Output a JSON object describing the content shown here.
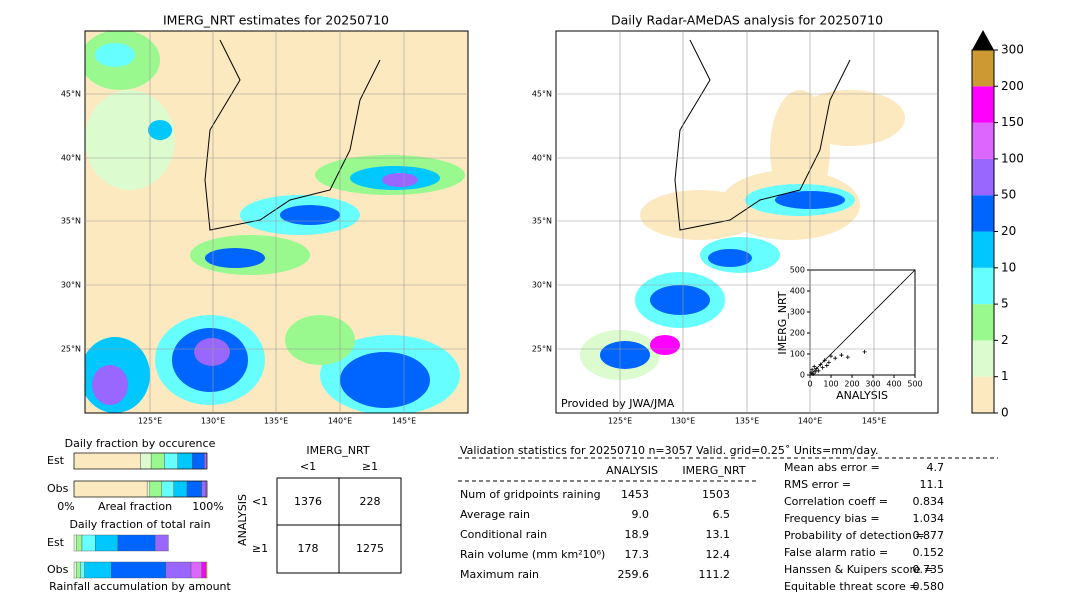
{
  "left_map": {
    "title": "IMERG_NRT estimates for 20250710"
  },
  "right_map": {
    "title": "Daily Radar-AMeDAS analysis for 20250710",
    "credit": "Provided by JWA/JMA"
  },
  "lat_labels": [
    "45°N",
    "40°N",
    "35°N",
    "30°N",
    "25°N"
  ],
  "lon_labels": [
    "125°E",
    "130°E",
    "135°E",
    "140°E",
    "145°E"
  ],
  "colorbar": {
    "ticks": [
      0,
      1,
      2,
      5,
      10,
      20,
      50,
      100,
      150,
      200,
      300
    ],
    "colors": [
      "#fde9c0",
      "#dcfcd0",
      "#99f98f",
      "#66fefe",
      "#00c8fe",
      "#0064fe",
      "#9966fe",
      "#dd66fe",
      "#ff00ff",
      "#cc9933"
    ]
  },
  "chart_data": {
    "type": "scatter",
    "xlabel": "ANALYSIS",
    "ylabel": "IMERG_NRT",
    "color": "#000000",
    "xlim": [
      0,
      500
    ],
    "ylim": [
      0,
      500
    ],
    "xticks": [
      0,
      100,
      200,
      300,
      400,
      500
    ],
    "yticks": [
      0,
      100,
      200,
      300,
      400,
      500
    ],
    "x": [
      5,
      10,
      15,
      20,
      25,
      30,
      40,
      50,
      60,
      70,
      80,
      90,
      100,
      120,
      150,
      180,
      260
    ],
    "y": [
      10,
      25,
      5,
      40,
      15,
      30,
      20,
      50,
      35,
      70,
      45,
      60,
      90,
      80,
      95,
      85,
      110
    ]
  },
  "occurrence": {
    "title": "Daily fraction by occurence",
    "rows": [
      "Est",
      "Obs"
    ],
    "fractions": [
      [
        50,
        8,
        10,
        10,
        11,
        9,
        2,
        0,
        0,
        0
      ],
      [
        55,
        2,
        9,
        9,
        10,
        11,
        3,
        1,
        0,
        0
      ]
    ],
    "axis_left": "0%",
    "axis_label": "Areal fraction",
    "axis_right": "100%"
  },
  "amount": {
    "title": "Daily fraction of total rain",
    "rows": [
      "Est",
      "Obs"
    ],
    "fractions": [
      [
        0,
        2,
        4,
        10,
        17,
        28,
        10,
        0,
        0,
        0
      ],
      [
        0,
        2,
        3,
        3,
        20,
        41,
        19,
        8,
        3,
        1
      ]
    ],
    "xlabel": "Rainfall accumulation by amount"
  },
  "contingency": {
    "col_title": "IMERG_NRT",
    "row_title": "ANALYSIS",
    "cols": [
      "<1",
      "≥1"
    ],
    "rows": [
      "<1",
      "≥1"
    ],
    "cells": [
      [
        "1376",
        "228"
      ],
      [
        "178",
        "1275"
      ]
    ]
  },
  "stats": {
    "title": "Validation statistics for 20250710  n=3057 Valid. grid=0.25˚ Units=mm/day.",
    "columns": [
      "ANALYSIS",
      "IMERG_NRT"
    ],
    "rows": [
      {
        "label": "Num of gridpoints raining",
        "values": [
          "1453",
          "1503"
        ]
      },
      {
        "label": "Average rain",
        "values": [
          "9.0",
          "6.5"
        ]
      },
      {
        "label": "Conditional rain",
        "values": [
          "18.9",
          "13.1"
        ]
      },
      {
        "label": "Rain volume (mm km²10⁶)",
        "values": [
          "17.3",
          "12.4"
        ]
      },
      {
        "label": "Maximum rain",
        "values": [
          "259.6",
          "111.2"
        ]
      }
    ]
  },
  "scores": [
    {
      "label": "Mean abs error =",
      "value": "4.7"
    },
    {
      "label": "RMS error =",
      "value": "11.1"
    },
    {
      "label": "Correlation coeff =",
      "value": "0.834"
    },
    {
      "label": "Frequency bias =",
      "value": "1.034"
    },
    {
      "label": "Probability of detection =",
      "value": "0.877"
    },
    {
      "label": "False alarm ratio =",
      "value": "0.152"
    },
    {
      "label": "Hanssen & Kuipers score =",
      "value": "0.735"
    },
    {
      "label": "Equitable threat score =",
      "value": "0.580"
    }
  ]
}
